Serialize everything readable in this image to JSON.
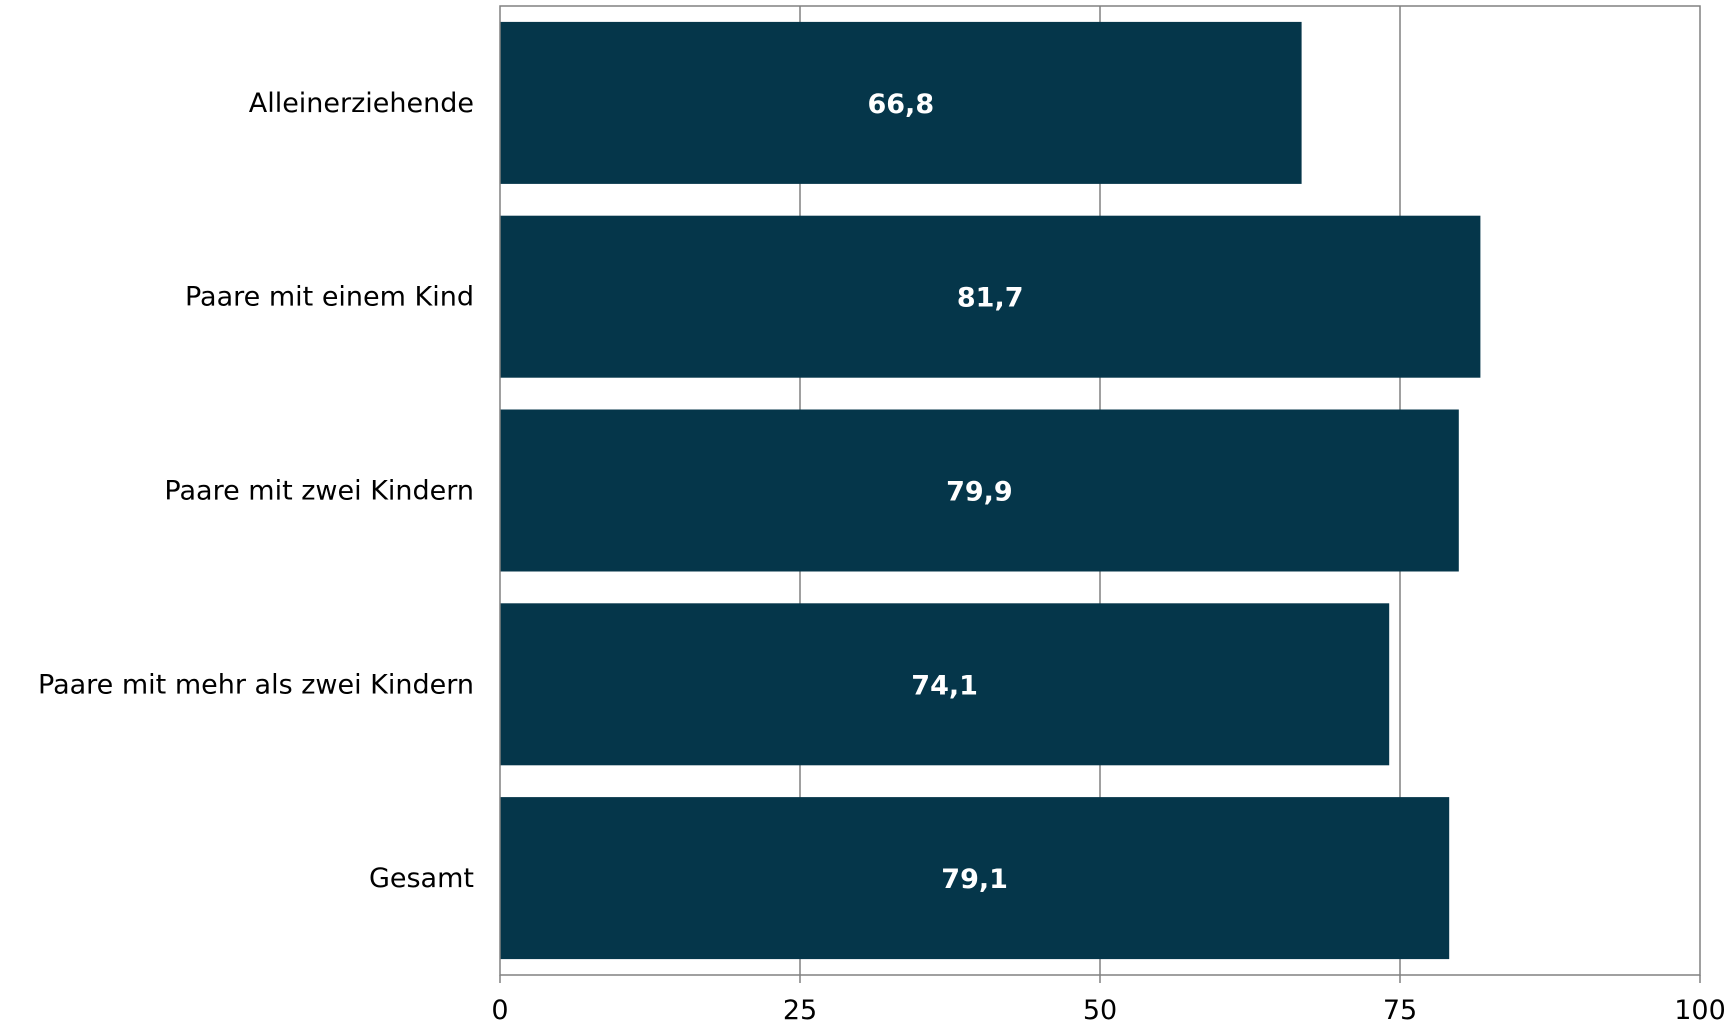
{
  "chart_data": {
    "type": "bar",
    "orientation": "horizontal",
    "categories": [
      "Alleinerziehende",
      "Paare mit einem Kind",
      "Paare mit zwei Kindern",
      "Paare mit mehr als zwei Kindern",
      "Gesamt"
    ],
    "values": [
      66.8,
      81.7,
      79.9,
      74.1,
      79.1
    ],
    "value_labels": [
      "66,8",
      "81,7",
      "79,9",
      "74,1",
      "79,1"
    ],
    "xlim": [
      0,
      100
    ],
    "xticks": [
      0,
      25,
      50,
      75,
      100
    ],
    "xtick_labels": [
      "0",
      "25",
      "50",
      "75",
      "100"
    ],
    "title": "",
    "xlabel": "",
    "ylabel": "",
    "grid": "vertical",
    "legend": "none",
    "bar_color": "#05364A"
  }
}
